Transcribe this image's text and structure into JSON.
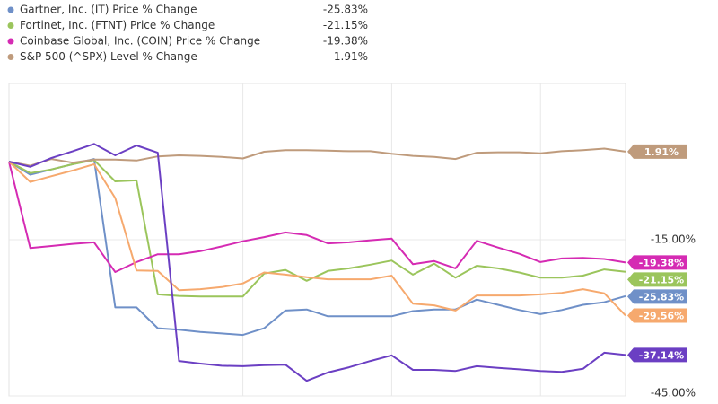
{
  "chart_data": {
    "type": "line",
    "categories": [
      null,
      null,
      null,
      null,
      null,
      null,
      null,
      null,
      null,
      null,
      null,
      null,
      null,
      null,
      null,
      null,
      null,
      null,
      null,
      null,
      null,
      null,
      null,
      null,
      null,
      null,
      null,
      null,
      null,
      null
    ],
    "ylim": [
      -45,
      15
    ],
    "yticks": [
      {
        "value": -15,
        "label": "-15.00%"
      },
      {
        "value": -45,
        "label": "-45.00%"
      }
    ],
    "grid": true,
    "legend": "top-left",
    "series": [
      {
        "name": "Gartner, Inc. (IT) Price % Change",
        "color": "#6f90c8",
        "values": [
          0,
          -2.5,
          -1.5,
          -0.5,
          0.5,
          -28,
          -28,
          -32,
          -32.3,
          -32.7,
          -33,
          -33.3,
          -32,
          -28.6,
          -28.4,
          -29.7,
          -29.7,
          -29.7,
          -29.7,
          -28.7,
          -28.4,
          -28.4,
          -26.5,
          -27.5,
          -28.5,
          -29.3,
          -28.5,
          -27.5,
          -27,
          -25.83
        ],
        "value_labels": [
          null,
          null,
          null,
          null,
          null,
          null,
          null,
          null,
          null,
          null,
          null,
          null,
          null,
          null,
          null,
          null,
          null,
          null,
          null,
          null,
          null,
          null,
          null,
          null,
          null,
          null,
          null,
          null,
          null,
          "-25.83%"
        ]
      },
      {
        "name": "Fortinet, Inc. (FTNT) Price % Change",
        "color": "#9bc55c",
        "values": [
          0,
          -2.2,
          -1.5,
          -0.5,
          0.3,
          -3.8,
          -3.6,
          -25.5,
          -25.8,
          -25.9,
          -25.9,
          -25.9,
          -21.5,
          -20.8,
          -22.9,
          -21,
          -20.5,
          -19.8,
          -19,
          -21.7,
          -19.6,
          -22.3,
          -20,
          -20.5,
          -21.3,
          -22.3,
          -22.3,
          -21.9,
          -20.7,
          -21.15
        ],
        "value_labels": [
          null,
          null,
          null,
          null,
          null,
          null,
          null,
          null,
          null,
          null,
          null,
          null,
          null,
          null,
          null,
          null,
          null,
          null,
          null,
          null,
          null,
          null,
          null,
          null,
          null,
          null,
          null,
          null,
          null,
          "-21.15%"
        ]
      },
      {
        "name": "Coinbase Global, Inc. (COIN) Price % Change",
        "color": "#d52bb3",
        "values": [
          0,
          -16.6,
          -16.2,
          -15.8,
          -15.5,
          -21.2,
          -19.3,
          -17.8,
          -17.8,
          -17.2,
          -16.3,
          -15.3,
          -14.5,
          -13.6,
          -14.1,
          -15.7,
          -15.5,
          -15.1,
          -14.8,
          -19.7,
          -19.1,
          -20.5,
          -15.2,
          -16.5,
          -17.7,
          -19.3,
          -18.6,
          -18.5,
          -18.7,
          -19.38
        ],
        "value_labels": [
          null,
          null,
          null,
          null,
          null,
          null,
          null,
          null,
          null,
          null,
          null,
          null,
          null,
          null,
          null,
          null,
          null,
          null,
          null,
          null,
          null,
          null,
          null,
          null,
          null,
          null,
          null,
          null,
          null,
          "-19.38%"
        ]
      },
      {
        "name": "S&P 500 (^SPX) Level % Change",
        "color": "#bf9b7c",
        "values": [
          0,
          -0.8,
          0.5,
          -0.2,
          0.4,
          0.4,
          0.2,
          1,
          1.2,
          1.1,
          0.9,
          0.6,
          1.9,
          2.2,
          2.2,
          2.1,
          2,
          2,
          1.5,
          1.1,
          0.9,
          0.5,
          1.7,
          1.8,
          1.8,
          1.6,
          2,
          2.2,
          2.5,
          1.91
        ],
        "value_labels": [
          null,
          null,
          null,
          null,
          null,
          null,
          null,
          null,
          null,
          null,
          null,
          null,
          null,
          null,
          null,
          null,
          null,
          null,
          null,
          null,
          null,
          null,
          null,
          null,
          null,
          null,
          null,
          null,
          null,
          "1.91%"
        ]
      },
      {
        "color": "#f6a96e",
        "values": [
          0,
          -3.9,
          -2.8,
          -1.7,
          -0.5,
          -7,
          -20.9,
          -21,
          -24.7,
          -24.5,
          -24.1,
          -23.4,
          -21.3,
          -21.7,
          -22.2,
          -22.6,
          -22.6,
          -22.6,
          -21.9,
          -27.3,
          -27.6,
          -28.6,
          -25.7,
          -25.7,
          -25.7,
          -25.5,
          -25.2,
          -24.5,
          -25.3,
          -29.56
        ],
        "value_labels": [
          null,
          null,
          null,
          null,
          null,
          null,
          null,
          null,
          null,
          null,
          null,
          null,
          null,
          null,
          null,
          null,
          null,
          null,
          null,
          null,
          null,
          null,
          null,
          null,
          null,
          null,
          null,
          null,
          null,
          "-29.56%"
        ]
      },
      {
        "color": "#6b3fc3",
        "values": [
          0,
          -1,
          0.7,
          2,
          3.4,
          1.2,
          3.1,
          1.7,
          -38.3,
          -38.8,
          -39.2,
          -39.3,
          -39.1,
          -39,
          -42.1,
          -40.5,
          -39.5,
          -38.3,
          -37.2,
          -40,
          -40,
          -40.2,
          -39.3,
          -39.6,
          -39.9,
          -40.2,
          -40.4,
          -39.8,
          -36.7,
          -37.14
        ],
        "value_labels": [
          null,
          null,
          null,
          null,
          null,
          null,
          null,
          null,
          null,
          null,
          null,
          null,
          null,
          null,
          null,
          null,
          null,
          null,
          null,
          null,
          null,
          null,
          null,
          null,
          null,
          null,
          null,
          null,
          null,
          "-37.14%"
        ]
      }
    ]
  }
}
